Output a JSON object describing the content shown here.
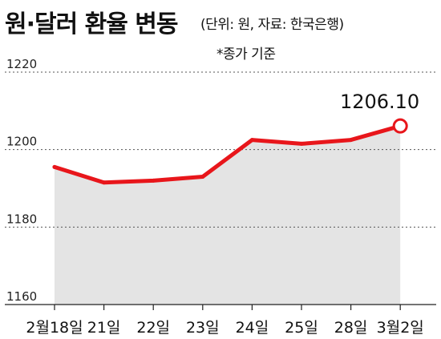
{
  "header": {
    "title": "원·달러 환율 변동",
    "unit_source": "(단위: 원, 자료: 한국은행)",
    "note": "*종가 기준"
  },
  "chart_data": {
    "type": "line",
    "categories": [
      "2월18일",
      "21일",
      "22일",
      "23일",
      "24일",
      "25일",
      "28일",
      "3월2일"
    ],
    "values": [
      1195.5,
      1191.5,
      1192,
      1193,
      1202.5,
      1201.5,
      1202.5,
      1206.1
    ],
    "ylim": [
      1160,
      1220
    ],
    "yticks": [
      1160,
      1180,
      1200,
      1220
    ],
    "annotation": {
      "index": 7,
      "text": "1206.10"
    },
    "grid": true,
    "colors": {
      "line": "#e8161b",
      "area": "#e4e4e4",
      "grid": "#555555",
      "marker_fill": "#ffffff"
    }
  }
}
